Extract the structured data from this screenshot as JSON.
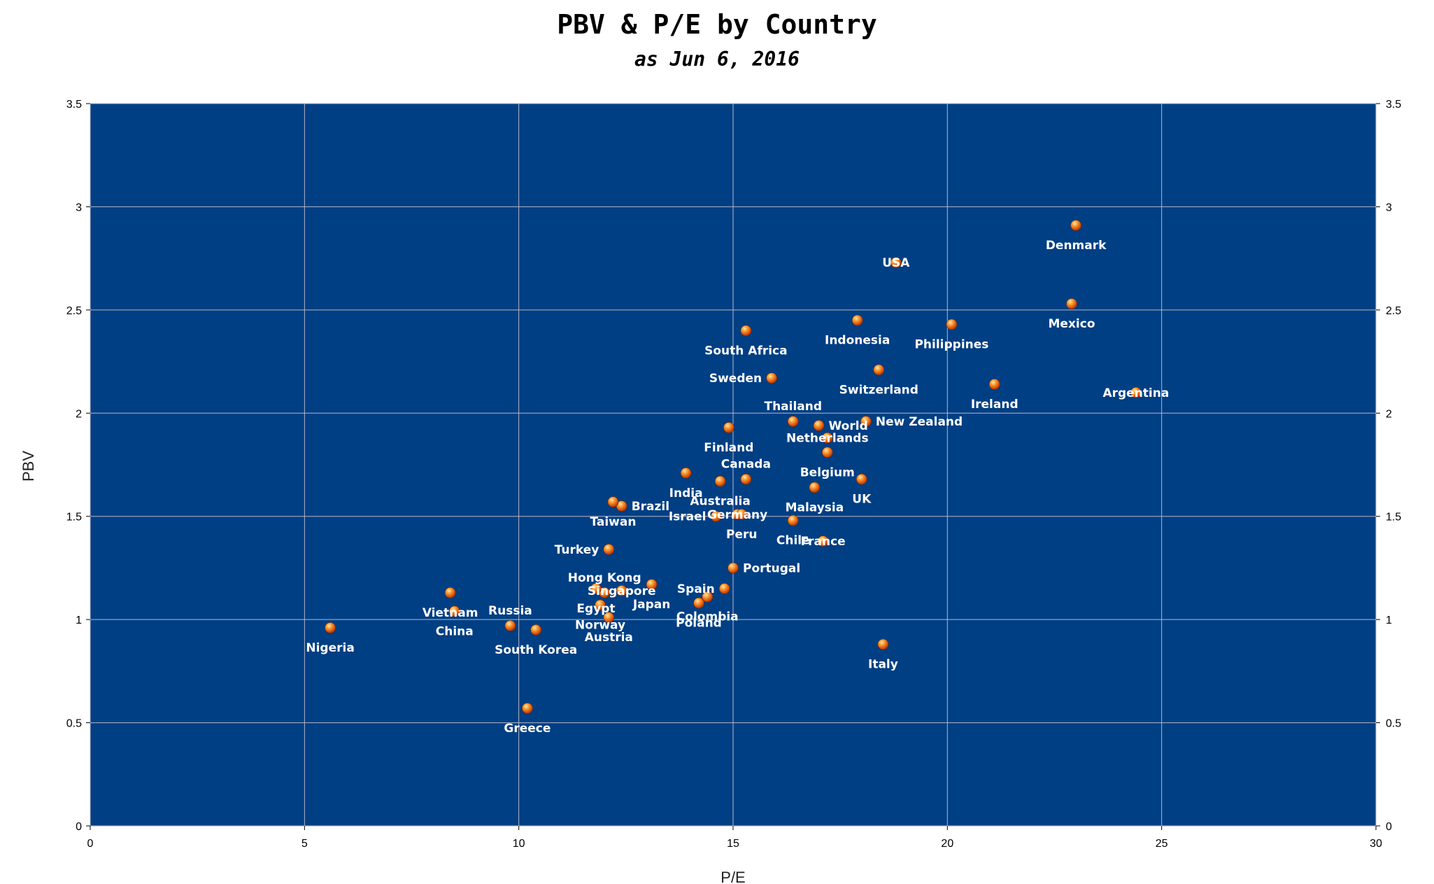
{
  "chart_data": {
    "type": "scatter",
    "title": "PBV & P/E by Country",
    "subtitle": "as Jun 6, 2016",
    "xlabel": "P/E",
    "ylabel": "PBV",
    "xlim": [
      0,
      30
    ],
    "ylim": [
      0,
      3.5
    ],
    "x_ticks": [
      0,
      5,
      10,
      15,
      20,
      25,
      30
    ],
    "y_ticks": [
      0,
      0.5,
      1,
      1.5,
      2,
      2.5,
      3,
      3.5
    ],
    "y_tick_labels": [
      "0",
      "0.5",
      "1",
      "1.5",
      "2",
      "2.5",
      "3",
      "3.5"
    ],
    "grid": true,
    "secondary_y_axis": true,
    "colors": {
      "plot_background": "#003f84",
      "marker": "#f07818",
      "label": "#ffffff",
      "grid": "#b7b7c6"
    },
    "points": [
      {
        "label": "Denmark",
        "x": 23.0,
        "y": 2.91,
        "pos": "below"
      },
      {
        "label": "USA",
        "x": 18.8,
        "y": 2.73,
        "pos": "center"
      },
      {
        "label": "Mexico",
        "x": 22.9,
        "y": 2.53,
        "pos": "below"
      },
      {
        "label": "Indonesia",
        "x": 17.9,
        "y": 2.45,
        "pos": "below"
      },
      {
        "label": "Philippines",
        "x": 20.1,
        "y": 2.43,
        "pos": "below"
      },
      {
        "label": "South Africa",
        "x": 15.3,
        "y": 2.4,
        "pos": "below"
      },
      {
        "label": "Switzerland",
        "x": 18.4,
        "y": 2.21,
        "pos": "below"
      },
      {
        "label": "Sweden",
        "x": 15.9,
        "y": 2.17,
        "pos": "left"
      },
      {
        "label": "Ireland",
        "x": 21.1,
        "y": 2.14,
        "pos": "below"
      },
      {
        "label": "Argentina",
        "x": 24.4,
        "y": 2.1,
        "pos": "center"
      },
      {
        "label": "Thailand",
        "x": 16.4,
        "y": 1.96,
        "pos": "above"
      },
      {
        "label": "New Zealand",
        "x": 18.1,
        "y": 1.96,
        "pos": "right"
      },
      {
        "label": "World",
        "x": 17.0,
        "y": 1.94,
        "pos": "right"
      },
      {
        "label": "Finland",
        "x": 14.9,
        "y": 1.93,
        "pos": "below"
      },
      {
        "label": "Netherlands",
        "x": 17.2,
        "y": 1.88,
        "pos": "center"
      },
      {
        "label": "Canada",
        "x": 15.3,
        "y": 1.68,
        "pos": "above"
      },
      {
        "label": "Belgium",
        "x": 17.2,
        "y": 1.81,
        "pos": "below"
      },
      {
        "label": "India",
        "x": 13.9,
        "y": 1.71,
        "pos": "below"
      },
      {
        "label": "UK",
        "x": 18.0,
        "y": 1.68,
        "pos": "below"
      },
      {
        "label": "Australia",
        "x": 14.7,
        "y": 1.67,
        "pos": "below"
      },
      {
        "label": "Malaysia",
        "x": 16.9,
        "y": 1.64,
        "pos": "below"
      },
      {
        "label": "Brazil",
        "x": 12.4,
        "y": 1.55,
        "pos": "right"
      },
      {
        "label": "Taiwan",
        "x": 12.2,
        "y": 1.57,
        "pos": "below"
      },
      {
        "label": "Germany",
        "x": 15.1,
        "y": 1.51,
        "pos": "center"
      },
      {
        "label": "Israel",
        "x": 14.6,
        "y": 1.5,
        "pos": "left"
      },
      {
        "label": "Chile",
        "x": 16.4,
        "y": 1.48,
        "pos": "below"
      },
      {
        "label": "Peru",
        "x": 15.2,
        "y": 1.51,
        "pos": "below"
      },
      {
        "label": "France",
        "x": 17.1,
        "y": 1.38,
        "pos": "center"
      },
      {
        "label": "Turkey",
        "x": 12.1,
        "y": 1.34,
        "pos": "left"
      },
      {
        "label": "Portugal",
        "x": 15.0,
        "y": 1.25,
        "pos": "right"
      },
      {
        "label": "Hong Kong",
        "x": 12.0,
        "y": 1.13,
        "pos": "above"
      },
      {
        "label": "Japan",
        "x": 13.1,
        "y": 1.17,
        "pos": "below"
      },
      {
        "label": "Singapore",
        "x": 12.4,
        "y": 1.14,
        "pos": "center"
      },
      {
        "label": "Spain",
        "x": 14.8,
        "y": 1.15,
        "pos": "left"
      },
      {
        "label": "Colombia",
        "x": 14.4,
        "y": 1.11,
        "pos": "below"
      },
      {
        "label": "Egypt",
        "x": 11.8,
        "y": 1.15,
        "pos": "below"
      },
      {
        "label": "Poland",
        "x": 14.2,
        "y": 1.08,
        "pos": "below"
      },
      {
        "label": "Vietnam",
        "x": 8.4,
        "y": 1.13,
        "pos": "below"
      },
      {
        "label": "China",
        "x": 8.5,
        "y": 1.04,
        "pos": "below"
      },
      {
        "label": "Russia",
        "x": 9.8,
        "y": 0.97,
        "pos": "above"
      },
      {
        "label": "Norway",
        "x": 11.9,
        "y": 1.07,
        "pos": "below"
      },
      {
        "label": "Austria",
        "x": 12.1,
        "y": 1.01,
        "pos": "below"
      },
      {
        "label": "South Korea",
        "x": 10.4,
        "y": 0.95,
        "pos": "below"
      },
      {
        "label": "Nigeria",
        "x": 5.6,
        "y": 0.96,
        "pos": "below"
      },
      {
        "label": "Italy",
        "x": 18.5,
        "y": 0.88,
        "pos": "below"
      },
      {
        "label": "Greece",
        "x": 10.2,
        "y": 0.57,
        "pos": "below"
      }
    ]
  }
}
